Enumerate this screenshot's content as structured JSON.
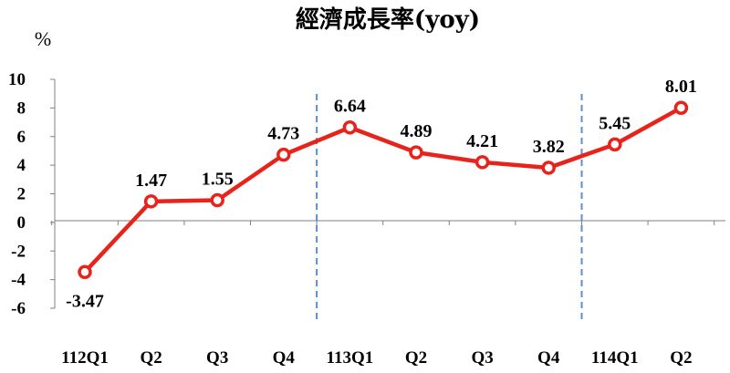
{
  "chart_data": {
    "type": "line",
    "title": "經濟成長率(yoy)",
    "ylabel": "%",
    "xlabel": "",
    "categories": [
      "112Q1",
      "Q2",
      "Q3",
      "Q4",
      "113Q1",
      "Q2",
      "Q3",
      "Q4",
      "114Q1",
      "Q2"
    ],
    "series": [
      {
        "values": [
          -3.47,
          1.47,
          1.55,
          4.73,
          6.64,
          4.89,
          4.21,
          3.82,
          5.45,
          8.01
        ]
      }
    ],
    "ylim": [
      -6,
      10
    ],
    "yticks": [
      "10",
      "8",
      "6",
      "4",
      "2",
      "0",
      "-2",
      "-4",
      "-6"
    ],
    "data_labels": [
      "-3.47",
      "1.47",
      "1.55",
      "4.73",
      "6.64",
      "4.89",
      "4.21",
      "3.82",
      "5.45",
      "8.01"
    ],
    "year_separators_after_index": [
      3,
      7
    ],
    "grid": false,
    "colors": {
      "line": "#e8231b",
      "marker_fill": "#ffffff",
      "separator": "#5b8fc9",
      "axis": "#808080"
    }
  }
}
